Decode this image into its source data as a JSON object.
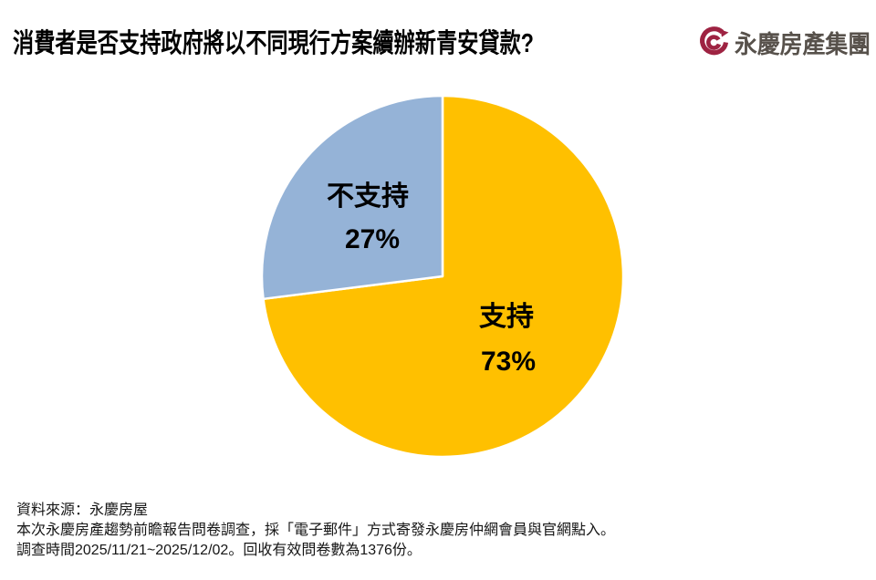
{
  "header": {
    "title": "消費者是否支持政府將以不同現行方案續辦新青安貸款?",
    "logo": {
      "brand": "永慶房產集團",
      "mark_color": "#9e2342",
      "text_color": "#57514b"
    }
  },
  "chart_data": {
    "type": "pie",
    "title": "消費者是否支持政府將以不同現行方案續辦新青安貸款?",
    "categories": [
      "支持",
      "不支持"
    ],
    "values": [
      73,
      27
    ],
    "unit": "%",
    "start_angle_deg": 0,
    "direction": "clockwise",
    "legend": "none",
    "labels_inside": true,
    "slice_divider_color": "#ffffff",
    "slices": [
      {
        "id": "support",
        "label": "支持",
        "value": 73,
        "display_value": "73%",
        "color": "#ffc000"
      },
      {
        "id": "oppose",
        "label": "不支持",
        "value": 27,
        "display_value": "27%",
        "color": "#95b3d7"
      }
    ]
  },
  "footer": {
    "source_line": "資料來源：永慶房屋",
    "method_line": "本次永慶房產趨勢前瞻報告問卷調查，採「電子郵件」方式寄發永慶房仲網會員與官網點入。",
    "period_line": "調查時間2025/11/21~2025/12/02。回收有效問卷數為1376份。"
  }
}
